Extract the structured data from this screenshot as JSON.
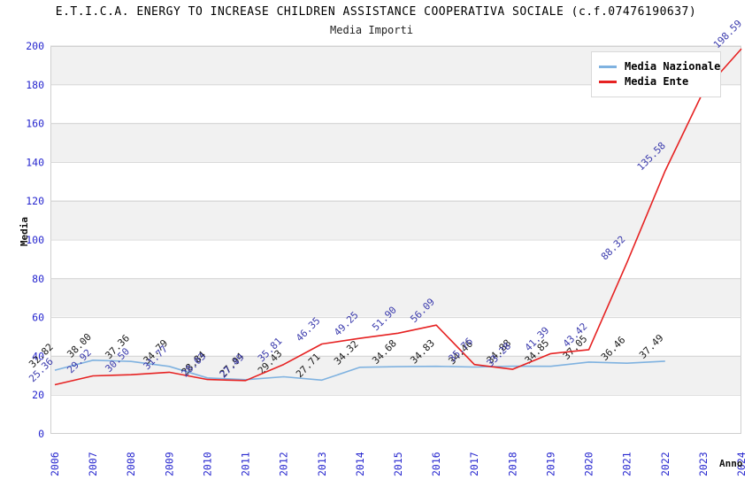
{
  "header": {
    "title": "E.T.I.C.A. ENERGY TO INCREASE CHILDREN ASSISTANCE COOPERATIVA SOCIALE (c.f.07476190637)",
    "subtitle": "Media Importi"
  },
  "axes": {
    "y_title": "Media",
    "x_title": "Anno",
    "y_ticks": [
      0,
      20,
      40,
      60,
      80,
      100,
      120,
      140,
      160,
      180,
      200
    ],
    "x_ticks": [
      "2006",
      "2007",
      "2008",
      "2009",
      "2010",
      "2011",
      "2012",
      "2013",
      "2014",
      "2015",
      "2016",
      "2017",
      "2018",
      "2019",
      "2020",
      "2021",
      "2022",
      "2023",
      "2024"
    ],
    "tick_color": "#2727cf"
  },
  "legend": {
    "items": [
      {
        "label": "Media Nazionale",
        "color": "#7fb2e0"
      },
      {
        "label": "Media Ente",
        "color": "#e62222"
      }
    ],
    "position": "top-right"
  },
  "chart_data": {
    "type": "line",
    "title": "E.T.I.C.A. ENERGY TO INCREASE CHILDREN ASSISTANCE COOPERATIVA SOCIALE (c.f.07476190637)",
    "subtitle": "Media Importi",
    "xlabel": "Anno",
    "ylabel": "Media",
    "ylim": [
      0,
      200
    ],
    "grid": "horizontal-bands-every-20",
    "legend_position": "top-right",
    "x": [
      2006,
      2007,
      2008,
      2009,
      2010,
      2011,
      2012,
      2013,
      2014,
      2015,
      2016,
      2017,
      2018,
      2019,
      2020,
      2021,
      2022,
      2023,
      2024
    ],
    "series": [
      {
        "name": "Media Nazionale",
        "color": "#7fb2e0",
        "label_color": "#1a1a1a",
        "points": [
          {
            "x": 2006,
            "y": 32.82,
            "label": "32.82"
          },
          {
            "x": 2007,
            "y": 38.0,
            "label": "38.00"
          },
          {
            "x": 2008,
            "y": 37.36,
            "label": "37.36"
          },
          {
            "x": 2009,
            "y": 34.79,
            "label": "34.79"
          },
          {
            "x": 2010,
            "y": 28.84,
            "label": "28.84"
          },
          {
            "x": 2011,
            "y": 27.94,
            "label": "27.94"
          },
          {
            "x": 2012,
            "y": 29.43,
            "label": "29.43"
          },
          {
            "x": 2013,
            "y": 27.71,
            "label": "27.71"
          },
          {
            "x": 2014,
            "y": 34.32,
            "label": "34.32"
          },
          {
            "x": 2015,
            "y": 34.68,
            "label": "34.68"
          },
          {
            "x": 2016,
            "y": 34.83,
            "label": "34.83"
          },
          {
            "x": 2017,
            "y": 34.46,
            "label": "34.46"
          },
          {
            "x": 2018,
            "y": 34.88,
            "label": "34.88"
          },
          {
            "x": 2019,
            "y": 34.85,
            "label": "34.85"
          },
          {
            "x": 2020,
            "y": 37.05,
            "label": "37.05"
          },
          {
            "x": 2021,
            "y": 36.46,
            "label": "36.46"
          },
          {
            "x": 2022,
            "y": 37.49,
            "label": "37.49"
          }
        ]
      },
      {
        "name": "Media Ente",
        "color": "#e62222",
        "label_color": "#3b3bad",
        "points": [
          {
            "x": 2006,
            "y": 25.36,
            "label": "25.36"
          },
          {
            "x": 2007,
            "y": 29.92,
            "label": "29.92"
          },
          {
            "x": 2008,
            "y": 30.5,
            "label": "30.50"
          },
          {
            "x": 2009,
            "y": 31.77,
            "label": "31.77"
          },
          {
            "x": 2010,
            "y": 28.03,
            "label": "28.03"
          },
          {
            "x": 2011,
            "y": 27.49,
            "label": "27.49"
          },
          {
            "x": 2012,
            "y": 35.81,
            "label": "35.81"
          },
          {
            "x": 2013,
            "y": 46.35,
            "label": "46.35"
          },
          {
            "x": 2014,
            "y": 49.25,
            "label": "49.25"
          },
          {
            "x": 2015,
            "y": 51.9,
            "label": "51.90"
          },
          {
            "x": 2016,
            "y": 56.09,
            "label": "56.09"
          },
          {
            "x": 2017,
            "y": 35.76,
            "label": "35.76"
          },
          {
            "x": 2018,
            "y": 33.28,
            "label": "33.28"
          },
          {
            "x": 2019,
            "y": 41.39,
            "label": "41.39"
          },
          {
            "x": 2020,
            "y": 43.42,
            "label": "43.42"
          },
          {
            "x": 2021,
            "y": 88.32,
            "label": "88.32"
          },
          {
            "x": 2022,
            "y": 135.58,
            "label": "135.58"
          },
          {
            "x": 2023,
            "y": 176.5,
            "label": ""
          },
          {
            "x": 2024,
            "y": 198.59,
            "label": "198.59"
          }
        ]
      }
    ]
  }
}
